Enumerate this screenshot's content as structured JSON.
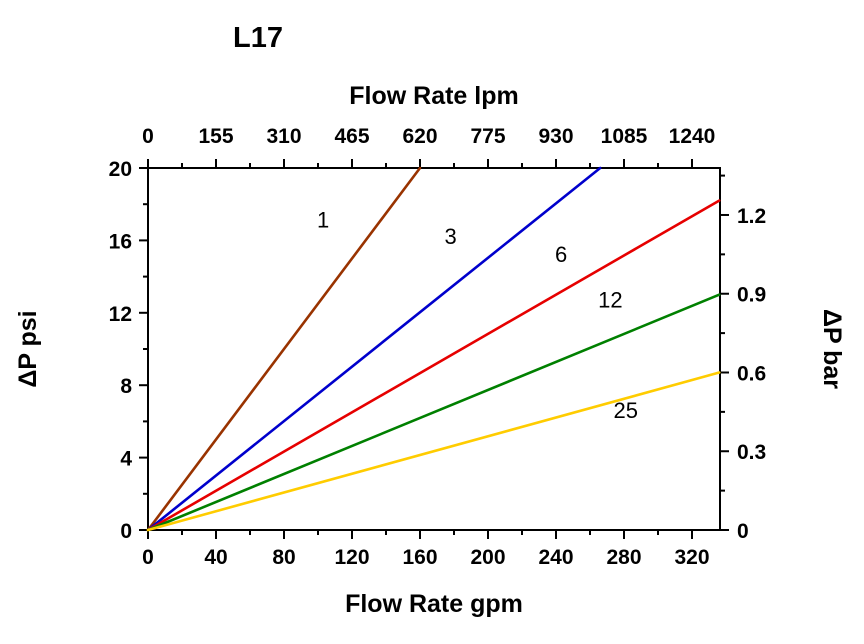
{
  "chart_data": {
    "type": "line",
    "title": "L17",
    "x_bottom": {
      "label": "Flow Rate gpm",
      "ticks": [
        0,
        40,
        80,
        120,
        160,
        200,
        240,
        280,
        320
      ],
      "minor_ticks": [
        20,
        60,
        100,
        140,
        180,
        220,
        260,
        300
      ],
      "range": [
        0,
        336
      ]
    },
    "x_top": {
      "label": "Flow Rate lpm",
      "ticks": [
        "0",
        "155",
        "310",
        "465",
        "620",
        "775",
        "930",
        "1085",
        "1240"
      ],
      "range": [
        0,
        1302
      ]
    },
    "y_left": {
      "label": "ΔP psi",
      "ticks": [
        0,
        4,
        8,
        12,
        16,
        20
      ],
      "minor_ticks": [
        2,
        6,
        10,
        14,
        18
      ],
      "range": [
        0,
        20
      ]
    },
    "y_right": {
      "label": "ΔP bar",
      "ticks": [
        "0",
        "0.3",
        "0.6",
        "0.9",
        "1.2"
      ],
      "minor_ticks": [
        0.15,
        0.45,
        0.75,
        1.05,
        1.35
      ],
      "range": [
        0,
        1.38
      ],
      "psi_per_bar": 14.5038
    },
    "series": [
      {
        "name": "1",
        "color": "#993300",
        "points": [
          [
            0,
            0
          ],
          [
            160,
            20
          ]
        ],
        "label_pos": [
          103,
          16.7
        ]
      },
      {
        "name": "3",
        "color": "#0000CC",
        "points": [
          [
            0,
            0
          ],
          [
            266,
            20
          ]
        ],
        "label_pos": [
          178,
          15.8
        ]
      },
      {
        "name": "6",
        "color": "#E60000",
        "points": [
          [
            0,
            0
          ],
          [
            336,
            18.2
          ]
        ],
        "label_pos": [
          243,
          14.8
        ]
      },
      {
        "name": "12",
        "color": "#008000",
        "points": [
          [
            0,
            0
          ],
          [
            336,
            13.0
          ]
        ],
        "label_pos": [
          272,
          12.3
        ]
      },
      {
        "name": "25",
        "color": "#FFCC00",
        "points": [
          [
            0,
            0
          ],
          [
            336,
            8.7
          ]
        ],
        "label_pos": [
          281,
          6.2
        ]
      }
    ]
  }
}
